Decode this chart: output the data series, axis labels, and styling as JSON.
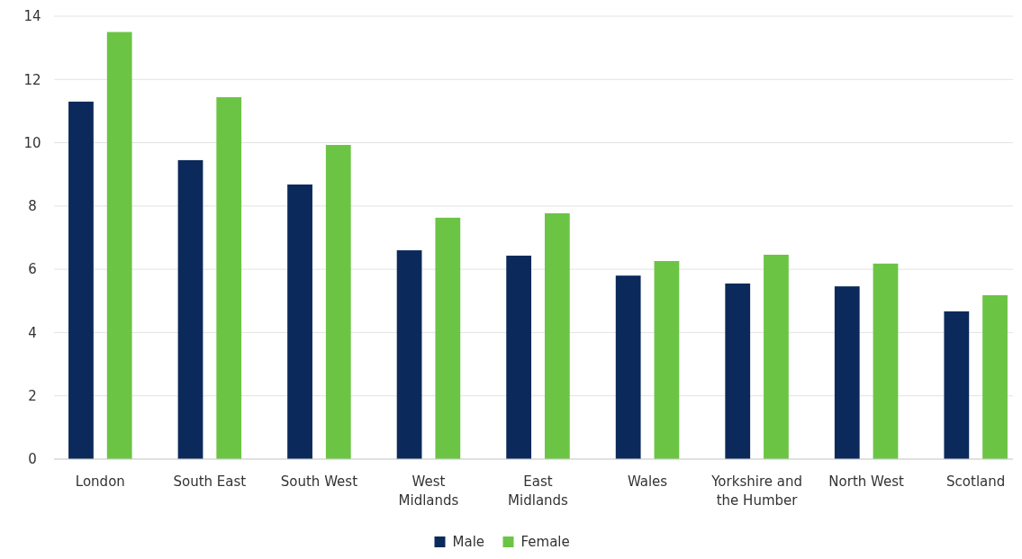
{
  "chart_data": {
    "type": "bar",
    "categories": [
      "London",
      "South East",
      "South West",
      "West Midlands",
      "East Midlands",
      "Wales",
      "Yorkshire and the Humber",
      "North West",
      "Scotland"
    ],
    "series": [
      {
        "name": "Male",
        "color": "#0b2a5b",
        "values": [
          11.3,
          9.45,
          8.68,
          6.6,
          6.43,
          5.8,
          5.55,
          5.46,
          4.67
        ]
      },
      {
        "name": "Female",
        "color": "#6cc445",
        "values": [
          13.5,
          11.44,
          9.93,
          7.63,
          7.77,
          6.26,
          6.46,
          6.18,
          5.18
        ]
      }
    ],
    "ylim": [
      0,
      14
    ],
    "yticks": [
      0,
      2,
      4,
      6,
      8,
      10,
      12,
      14
    ],
    "grid": "y",
    "legend": "bottom"
  }
}
